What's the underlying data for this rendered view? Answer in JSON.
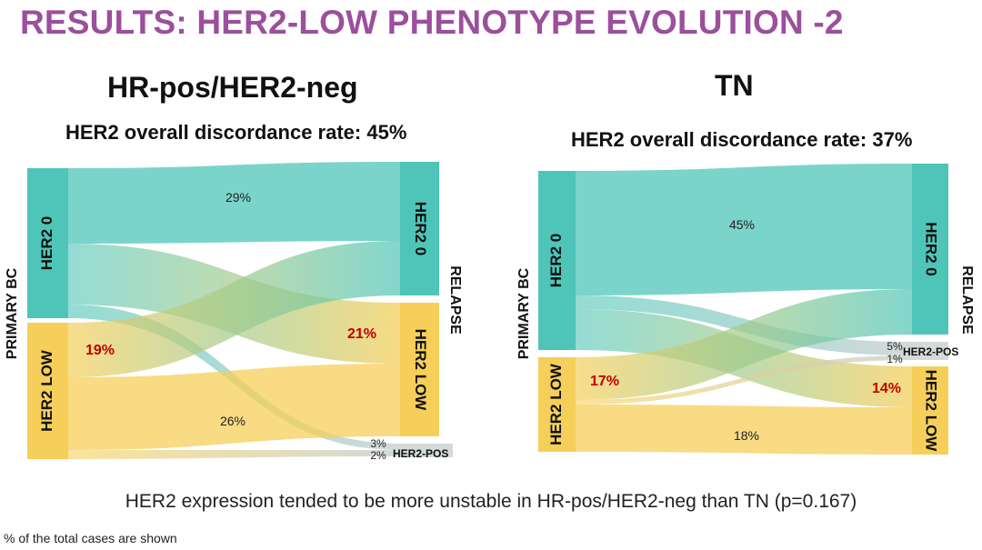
{
  "title": "RESULTS: HER2-LOW PHENOTYPE EVOLUTION -2",
  "footer": "HER2 expression tended to be more unstable in HR-pos/HER2-neg than TN (p=0.167)",
  "note": "% of the total cases are shown",
  "colors": {
    "title": "#9b4f9c",
    "her2_0": "#4ec5b8",
    "her2_low": "#f5cf5a",
    "her2_pos": "#c9d0d0",
    "highlight": "#c00000"
  },
  "axis_labels": {
    "left": "PRIMARY BC",
    "right": "RELAPSE"
  },
  "panels": [
    {
      "heading": "HR-pos/HER2-neg",
      "discordance": "HER2 overall discordance rate: 45%",
      "source_nodes": [
        "HER2 0",
        "HER2 LOW"
      ],
      "target_nodes": [
        "HER2 0",
        "HER2 LOW",
        "HER2-POS"
      ],
      "flows": [
        {
          "from": "HER2 0",
          "to": "HER2 0",
          "label": "29%",
          "highlight": false
        },
        {
          "from": "HER2 0",
          "to": "HER2 LOW",
          "label": "21%",
          "highlight": true
        },
        {
          "from": "HER2 0",
          "to": "HER2-POS",
          "label": "3%",
          "highlight": false
        },
        {
          "from": "HER2 LOW",
          "to": "HER2 0",
          "label": "19%",
          "highlight": true
        },
        {
          "from": "HER2 LOW",
          "to": "HER2 LOW",
          "label": "26%",
          "highlight": false
        },
        {
          "from": "HER2 LOW",
          "to": "HER2-POS",
          "label": "2%",
          "highlight": false
        }
      ]
    },
    {
      "heading": "TN",
      "discordance": "HER2 overall discordance rate: 37%",
      "source_nodes": [
        "HER2 0",
        "HER2 LOW"
      ],
      "target_nodes": [
        "HER2 0",
        "HER2-POS",
        "HER2 LOW"
      ],
      "flows": [
        {
          "from": "HER2 0",
          "to": "HER2 0",
          "label": "45%",
          "highlight": false
        },
        {
          "from": "HER2 0",
          "to": "HER2-POS",
          "label": "5%",
          "highlight": false
        },
        {
          "from": "HER2 0",
          "to": "HER2 LOW",
          "label": "14%",
          "highlight": true
        },
        {
          "from": "HER2 LOW",
          "to": "HER2 0",
          "label": "17%",
          "highlight": true
        },
        {
          "from": "HER2 LOW",
          "to": "HER2-POS",
          "label": "1%",
          "highlight": false
        },
        {
          "from": "HER2 LOW",
          "to": "HER2 LOW",
          "label": "18%",
          "highlight": false
        }
      ]
    }
  ]
}
